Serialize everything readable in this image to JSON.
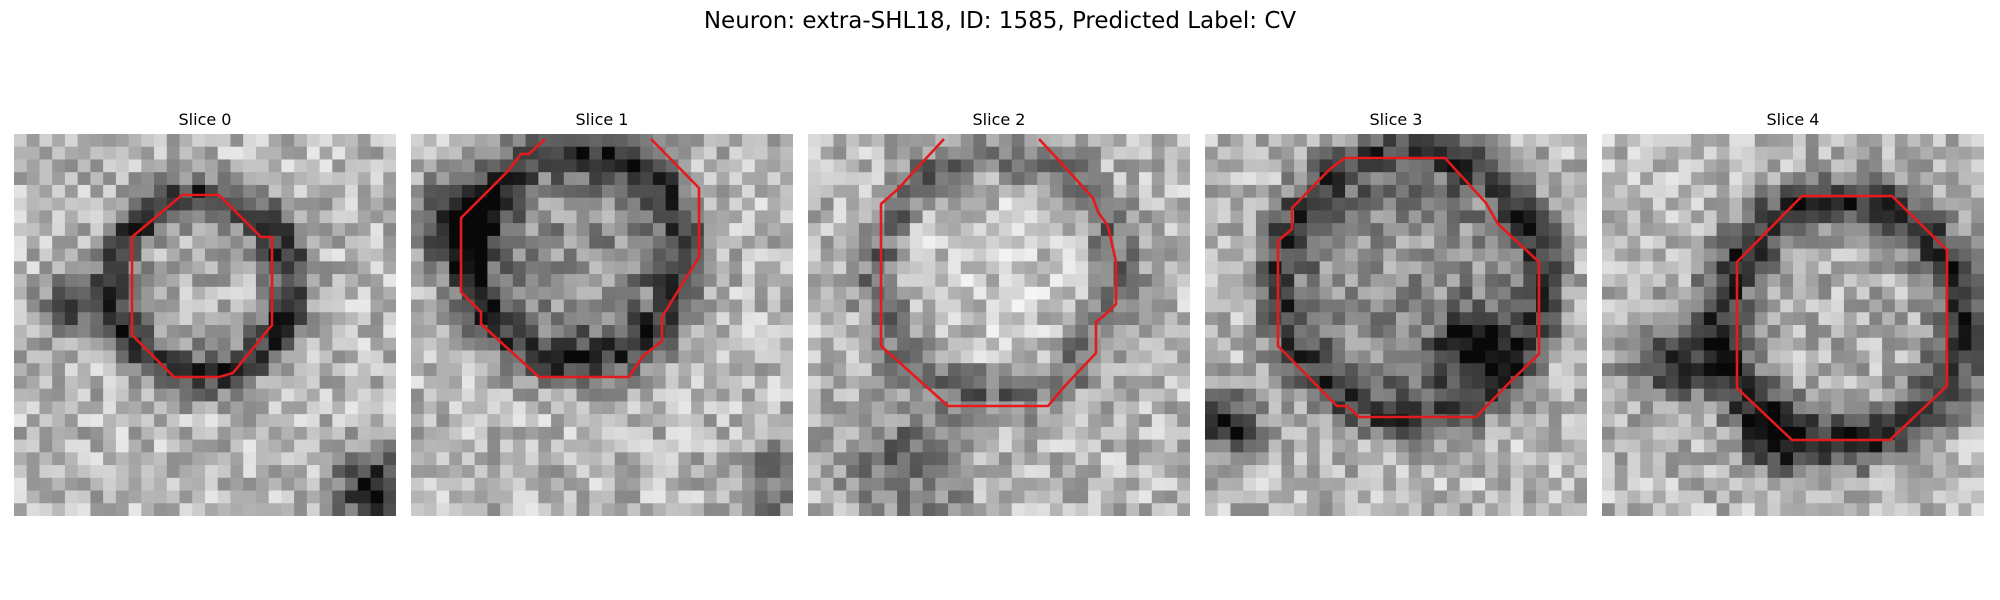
{
  "figure": {
    "title": "Neuron: extra-SHL18, ID: 1585, Predicted Label: CV"
  },
  "panels": [
    {
      "title": "Slice 0"
    },
    {
      "title": "Slice 1"
    },
    {
      "title": "Slice 2"
    },
    {
      "title": "Slice 3"
    },
    {
      "title": "Slice 4"
    }
  ],
  "style": {
    "contour_color": "#e41a1c",
    "image_colormap": "grayscale"
  }
}
